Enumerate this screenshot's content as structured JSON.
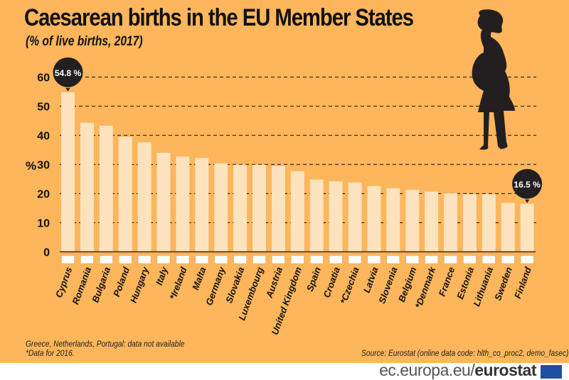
{
  "header": {
    "title": "Caesarean births in the EU  Member States",
    "subtitle": "(% of live births, 2017)"
  },
  "notes": {
    "left_line1": "Greece, Netherlands, Portugal: data not available",
    "left_line2": "*Data for 2016.",
    "source": "Source: Eurostat (online data code: hlth_co_proc2, demo_fasec)"
  },
  "footer": {
    "domain_part": "ec.europa.eu/",
    "brand_part": "eurostat"
  },
  "colors": {
    "background": "#fdb65b",
    "bar": "#fde3bd",
    "text": "#111111",
    "callout": "#231f20"
  },
  "chart_data": {
    "type": "bar",
    "title": "Caesarean births in the EU  Member States",
    "subtitle": "(% of live births, 2017)",
    "ylabel": "%",
    "ylim": [
      0,
      60
    ],
    "yticks": [
      0,
      10,
      20,
      30,
      40,
      50,
      60
    ],
    "grid": true,
    "categories": [
      "Cyprus",
      "Romania",
      "Bulgaria",
      "Poland",
      "Hungary",
      "Italy",
      "*Ireland",
      "Malta",
      "Germany",
      "Slovakia",
      "Luxembourg",
      "Austria",
      "United Kingdom",
      "Spain",
      "Croatia",
      "*Czechia",
      "Latvia",
      "Slovenia",
      "Belgium",
      "*Denmark",
      "France",
      "Estonia",
      "Lithuania",
      "Sweden",
      "Finland"
    ],
    "values": [
      54.8,
      44.3,
      43.3,
      39.5,
      37.6,
      34.0,
      32.7,
      32.2,
      30.4,
      29.9,
      29.9,
      29.5,
      27.7,
      24.8,
      24.2,
      23.8,
      22.6,
      21.8,
      21.3,
      20.7,
      20.1,
      19.8,
      19.8,
      16.8,
      16.5
    ],
    "annotations": [
      {
        "category": "Cyprus",
        "label": "54.8 %"
      },
      {
        "category": "Finland",
        "label": "16.5 %"
      }
    ]
  }
}
